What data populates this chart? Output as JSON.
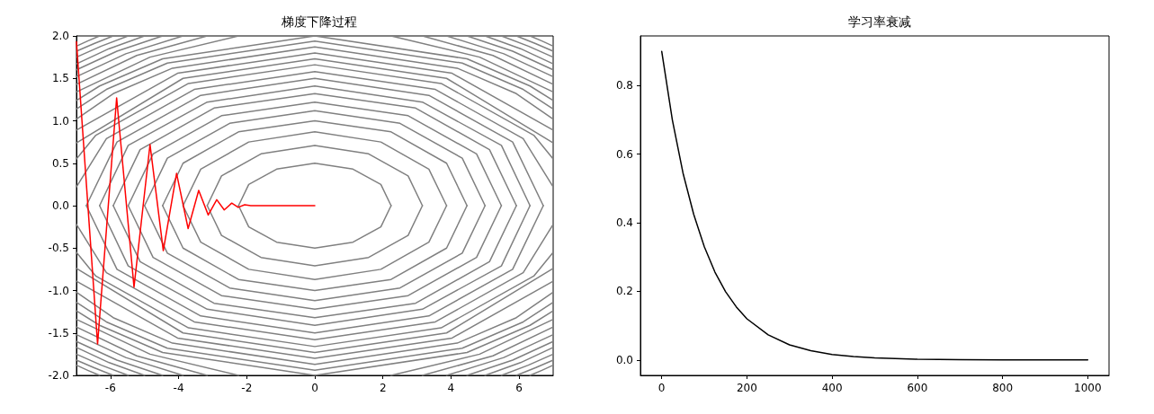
{
  "chart_data": [
    {
      "type": "line",
      "title": "梯度下降过程",
      "xlim": [
        -7,
        7
      ],
      "ylim": [
        -2,
        2
      ],
      "xticks": [
        -6,
        -4,
        -2,
        0,
        2,
        4,
        6
      ],
      "yticks": [
        {
          "value": -2,
          "label": "-2.0"
        },
        -1.5,
        {
          "value": -1,
          "label": "-1.0"
        },
        -0.5,
        {
          "value": 0,
          "label": "0.0"
        },
        0.5,
        {
          "value": 1,
          "label": "1.0"
        },
        1.5,
        {
          "value": 2,
          "label": "2.0"
        }
      ],
      "grid": false,
      "series": [
        {
          "color": "#808080",
          "x": [
            -2.24,
            -1.94,
            -1.12,
            0,
            1.12,
            1.94,
            2.24
          ],
          "values": [
            0,
            0.25,
            0.43,
            0.5,
            0.43,
            0.25,
            0
          ]
        },
        {
          "color": "#808080",
          "x": [
            -2.24,
            -1.94,
            -1.12,
            0,
            1.12,
            1.94,
            2.24
          ],
          "values": [
            0,
            -0.25,
            -0.43,
            -0.5,
            -0.43,
            -0.25,
            0
          ]
        },
        {
          "color": "#808080",
          "x": [
            -3.16,
            -2.74,
            -1.58,
            0,
            1.58,
            2.74,
            3.16
          ],
          "values": [
            0,
            0.35,
            0.61,
            0.71,
            0.61,
            0.35,
            0
          ]
        },
        {
          "color": "#808080",
          "x": [
            -3.16,
            -2.74,
            -1.58,
            0,
            1.58,
            2.74,
            3.16
          ],
          "values": [
            0,
            -0.35,
            -0.61,
            -0.71,
            -0.61,
            -0.35,
            0
          ]
        },
        {
          "color": "#808080",
          "x": [
            -3.87,
            -3.35,
            -1.94,
            0,
            1.94,
            3.35,
            3.87
          ],
          "values": [
            0,
            0.43,
            0.75,
            0.87,
            0.75,
            0.43,
            0
          ]
        },
        {
          "color": "#808080",
          "x": [
            -3.87,
            -3.35,
            -1.94,
            0,
            1.94,
            3.35,
            3.87
          ],
          "values": [
            0,
            -0.43,
            -0.75,
            -0.87,
            -0.75,
            -0.43,
            0
          ]
        },
        {
          "color": "#808080",
          "x": [
            -4.47,
            -3.87,
            -2.24,
            0,
            2.24,
            3.87,
            4.47
          ],
          "values": [
            0,
            0.5,
            0.87,
            1,
            0.87,
            0.5,
            0
          ]
        },
        {
          "color": "#808080",
          "x": [
            -4.47,
            -3.87,
            -2.24,
            0,
            2.24,
            3.87,
            4.47
          ],
          "values": [
            0,
            -0.5,
            -0.87,
            -1,
            -0.87,
            -0.5,
            0
          ]
        },
        {
          "color": "#808080",
          "x": [
            -5,
            -4.33,
            -2.5,
            0,
            2.5,
            4.33,
            5
          ],
          "values": [
            0,
            0.56,
            0.97,
            1.12,
            0.97,
            0.56,
            0
          ]
        },
        {
          "color": "#808080",
          "x": [
            -5,
            -4.33,
            -2.5,
            0,
            2.5,
            4.33,
            5
          ],
          "values": [
            0,
            -0.56,
            -0.97,
            -1.12,
            -0.97,
            -0.56,
            0
          ]
        },
        {
          "color": "#808080",
          "x": [
            -5.48,
            -4.75,
            -2.74,
            0,
            2.74,
            4.75,
            5.48
          ],
          "values": [
            0,
            0.61,
            1.06,
            1.22,
            1.06,
            0.61,
            0
          ]
        },
        {
          "color": "#808080",
          "x": [
            -5.48,
            -4.75,
            -2.74,
            0,
            2.74,
            4.75,
            5.48
          ],
          "values": [
            0,
            -0.61,
            -1.06,
            -1.22,
            -1.06,
            -0.61,
            0
          ]
        },
        {
          "color": "#808080",
          "x": [
            -5.92,
            -5.13,
            -2.96,
            0,
            2.96,
            5.13,
            5.92
          ],
          "values": [
            0,
            0.66,
            1.15,
            1.32,
            1.15,
            0.66,
            0
          ]
        },
        {
          "color": "#808080",
          "x": [
            -5.92,
            -5.13,
            -2.96,
            0,
            2.96,
            5.13,
            5.92
          ],
          "values": [
            0,
            -0.66,
            -1.15,
            -1.32,
            -1.15,
            -0.66,
            0
          ]
        },
        {
          "color": "#808080",
          "x": [
            -6.32,
            -5.48,
            -3.16,
            0,
            3.16,
            5.48,
            6.32
          ],
          "values": [
            0,
            0.71,
            1.22,
            1.41,
            1.22,
            0.71,
            0
          ]
        },
        {
          "color": "#808080",
          "x": [
            -6.32,
            -5.48,
            -3.16,
            0,
            3.16,
            5.48,
            6.32
          ],
          "values": [
            0,
            -0.71,
            -1.22,
            -1.41,
            -1.22,
            -0.71,
            0
          ]
        },
        {
          "color": "#808080",
          "x": [
            -6.71,
            -5.81,
            -3.35,
            0,
            3.35,
            5.81,
            6.71
          ],
          "values": [
            0,
            0.75,
            1.3,
            1.5,
            1.3,
            0.75,
            0
          ]
        },
        {
          "color": "#808080",
          "x": [
            -6.71,
            -5.81,
            -3.35,
            0,
            3.35,
            5.81,
            6.71
          ],
          "values": [
            0,
            -0.75,
            -1.3,
            -1.5,
            -1.3,
            -0.75,
            0
          ]
        },
        {
          "color": "#808080",
          "x": [
            -7,
            -6.12,
            -3.54,
            0,
            3.54,
            6.12,
            7
          ],
          "values": [
            0.22,
            0.79,
            1.37,
            1.58,
            1.37,
            0.79,
            0.22
          ]
        },
        {
          "color": "#808080",
          "x": [
            -7,
            -6.12,
            -3.54,
            0,
            3.54,
            6.12,
            7
          ],
          "values": [
            -0.22,
            -0.79,
            -1.37,
            -1.58,
            -1.37,
            -0.79,
            -0.22
          ]
        },
        {
          "color": "#808080",
          "x": [
            -7,
            -6.43,
            -3.71,
            0,
            3.71,
            6.43,
            7
          ],
          "values": [
            0.55,
            0.83,
            1.44,
            1.66,
            1.44,
            0.83,
            0.55
          ]
        },
        {
          "color": "#808080",
          "x": [
            -7,
            -6.43,
            -3.71,
            0,
            3.71,
            6.43,
            7
          ],
          "values": [
            -0.55,
            -0.83,
            -1.44,
            -1.66,
            -1.44,
            -0.83,
            -0.55
          ]
        },
        {
          "color": "#808080",
          "x": [
            -7,
            -3.87,
            0,
            3.87,
            7
          ],
          "values": [
            0.74,
            1.5,
            1.73,
            1.5,
            0.74
          ]
        },
        {
          "color": "#808080",
          "x": [
            -7,
            -3.87,
            0,
            3.87,
            7
          ],
          "values": [
            -0.74,
            -1.5,
            -1.73,
            -1.5,
            -0.74
          ]
        },
        {
          "color": "#808080",
          "x": [
            -7,
            -4.03,
            0,
            4.03,
            7
          ],
          "values": [
            0.89,
            1.56,
            1.8,
            1.56,
            0.89
          ]
        },
        {
          "color": "#808080",
          "x": [
            -7,
            -4.03,
            0,
            4.03,
            7
          ],
          "values": [
            -0.89,
            -1.56,
            -1.8,
            -1.56,
            -0.89
          ]
        },
        {
          "color": "#808080",
          "x": [
            -7,
            -5.92,
            -4.18,
            0,
            4.18,
            5.92,
            7
          ],
          "values": [
            1.02,
            1.32,
            1.62,
            1.87,
            1.62,
            1.32,
            1.02
          ]
        },
        {
          "color": "#808080",
          "x": [
            -7,
            -5.92,
            -4.18,
            0,
            4.18,
            5.92,
            7
          ],
          "values": [
            -1.02,
            -1.32,
            -1.62,
            -1.87,
            -1.62,
            -1.32,
            -1.02
          ]
        },
        {
          "color": "#808080",
          "x": [
            -7,
            -6.12,
            -4.33,
            0,
            4.33,
            6.12,
            7
          ],
          "values": [
            1.14,
            1.37,
            1.68,
            1.94,
            1.68,
            1.37,
            1.14
          ]
        },
        {
          "color": "#808080",
          "x": [
            -7,
            -6.12,
            -4.33,
            0,
            4.33,
            6.12,
            7
          ],
          "values": [
            -1.14,
            -1.37,
            -1.68,
            -1.94,
            -1.68,
            -1.37,
            -1.14
          ]
        },
        {
          "color": "#808080",
          "x": [
            -7,
            -6.32,
            -4.47,
            0,
            4.47,
            6.32,
            7
          ],
          "values": [
            1.24,
            1.41,
            1.73,
            2,
            1.73,
            1.41,
            1.24
          ]
        },
        {
          "color": "#808080",
          "x": [
            -7,
            -6.32,
            -4.47,
            0,
            4.47,
            6.32,
            7
          ],
          "values": [
            -1.24,
            -1.41,
            -1.73,
            -2,
            -1.73,
            -1.41,
            -1.24
          ]
        },
        {
          "color": "#808080",
          "x": [
            -7,
            -4.84,
            -2.24,
            null,
            2.24,
            4.84,
            7
          ],
          "values": [
            1.34,
            1.75,
            2,
            null,
            2,
            1.75,
            1.34
          ]
        },
        {
          "color": "#808080",
          "x": [
            -7,
            -4.84,
            -2.24,
            null,
            2.24,
            4.84,
            7
          ],
          "values": [
            -1.34,
            -1.75,
            -2,
            null,
            -2,
            -1.75,
            -1.34
          ]
        },
        {
          "color": "#808080",
          "x": [
            -7,
            -5.23,
            -3.16,
            null,
            3.16,
            5.23,
            7
          ],
          "values": [
            1.43,
            1.77,
            2,
            null,
            2,
            1.77,
            1.43
          ]
        },
        {
          "color": "#808080",
          "x": [
            -7,
            -5.23,
            -3.16,
            null,
            3.16,
            5.23,
            7
          ],
          "values": [
            -1.43,
            -1.77,
            -2,
            null,
            -2,
            -1.77,
            -1.43
          ]
        },
        {
          "color": "#808080",
          "x": [
            -7,
            -5.55,
            -3.87,
            null,
            3.87,
            5.55,
            7
          ],
          "values": [
            1.52,
            1.79,
            2,
            null,
            2,
            1.79,
            1.52
          ]
        },
        {
          "color": "#808080",
          "x": [
            -7,
            -5.55,
            -3.87,
            null,
            3.87,
            5.55,
            7
          ],
          "values": [
            -1.52,
            -1.79,
            -2,
            null,
            -2,
            -1.79,
            -1.52
          ]
        },
        {
          "color": "#808080",
          "x": [
            -7,
            -5.81,
            -4.47,
            null,
            4.47,
            5.81,
            7
          ],
          "values": [
            1.6,
            1.82,
            2,
            null,
            2,
            1.82,
            1.6
          ]
        },
        {
          "color": "#808080",
          "x": [
            -7,
            -5.81,
            -4.47,
            null,
            4.47,
            5.81,
            7
          ],
          "values": [
            -1.6,
            -1.82,
            -2,
            null,
            -2,
            -1.82,
            -1.6
          ]
        },
        {
          "color": "#808080",
          "x": [
            -7,
            -6.04,
            -5,
            null,
            5,
            6.04,
            7
          ],
          "values": [
            1.67,
            1.85,
            2,
            null,
            2,
            1.85,
            1.67
          ]
        },
        {
          "color": "#808080",
          "x": [
            -7,
            -6.04,
            -5,
            null,
            5,
            6.04,
            7
          ],
          "values": [
            -1.67,
            -1.85,
            -2,
            null,
            -2,
            -1.85,
            -1.67
          ]
        },
        {
          "color": "#808080",
          "x": [
            -7,
            -6.27,
            -5.48,
            null,
            5.48,
            6.27,
            7
          ],
          "values": [
            1.75,
            1.88,
            2,
            null,
            2,
            1.88,
            1.75
          ]
        },
        {
          "color": "#808080",
          "x": [
            -7,
            -6.27,
            -5.48,
            null,
            5.48,
            6.27,
            7
          ],
          "values": [
            -1.75,
            -1.88,
            -2,
            null,
            -2,
            -1.88,
            -1.75
          ]
        },
        {
          "color": "#808080",
          "x": [
            -7,
            -6.48,
            -5.92,
            null,
            5.92,
            6.48,
            7
          ],
          "values": [
            1.82,
            1.91,
            2,
            null,
            2,
            1.91,
            1.82
          ]
        },
        {
          "color": "#808080",
          "x": [
            -7,
            -6.48,
            -5.92,
            null,
            5.92,
            6.48,
            7
          ],
          "values": [
            -1.82,
            -1.91,
            -2,
            null,
            -2,
            -1.91,
            -1.82
          ]
        },
        {
          "color": "#808080",
          "x": [
            -7,
            -6.67,
            -6.32,
            null,
            6.32,
            6.67,
            7
          ],
          "values": [
            1.88,
            1.94,
            2,
            null,
            2,
            1.94,
            1.88
          ]
        },
        {
          "color": "#808080",
          "x": [
            -7,
            -6.67,
            -6.32,
            null,
            6.32,
            6.67,
            7
          ],
          "values": [
            -1.88,
            -1.94,
            -2,
            null,
            -2,
            -1.94,
            -1.88
          ]
        },
        {
          "color": "#ff0000",
          "x": [
            -7,
            -6.38,
            -5.82,
            -5.31,
            -4.84,
            -4.45,
            -4.06,
            -3.72,
            -3.41,
            -3.13,
            -2.88,
            -2.66,
            -2.44,
            -2.25,
            -2.06,
            -1.88,
            0
          ],
          "values": [
            1.93,
            -1.63,
            1.27,
            -0.96,
            0.72,
            -0.53,
            0.38,
            -0.27,
            0.18,
            -0.11,
            0.07,
            -0.05,
            0.03,
            -0.02,
            0.01,
            0,
            0
          ]
        }
      ]
    },
    {
      "type": "line",
      "title": "学习率衰减",
      "xlim": [
        -50,
        1050
      ],
      "ylim": [
        -0.045,
        0.945
      ],
      "xticks": [
        0,
        200,
        400,
        600,
        800,
        1000
      ],
      "yticks": [
        {
          "value": 0,
          "label": "0.0"
        },
        0.2,
        0.4,
        0.6,
        0.8
      ],
      "grid": false,
      "color": "#000000",
      "x": [
        0,
        25,
        50,
        75,
        100,
        125,
        150,
        175,
        200,
        250,
        300,
        350,
        400,
        450,
        500,
        600,
        700,
        800,
        900,
        1000
      ],
      "values": [
        0.9,
        0.7,
        0.545,
        0.425,
        0.33,
        0.256,
        0.199,
        0.155,
        0.12,
        0.073,
        0.044,
        0.027,
        0.016,
        0.01,
        0.006,
        0.002,
        0.001,
        0,
        0,
        0
      ]
    }
  ]
}
